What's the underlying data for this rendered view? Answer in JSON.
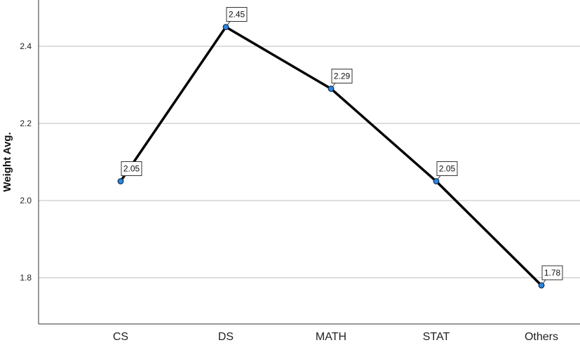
{
  "chart_data": {
    "type": "line",
    "title": "",
    "xlabel": "",
    "ylabel": "Weight Avg.",
    "categories": [
      "CS",
      "DS",
      "MATH",
      "STAT",
      "Others"
    ],
    "series": [
      {
        "values": [
          2.05,
          2.45,
          2.29,
          2.05,
          1.78
        ]
      }
    ],
    "data_labels": [
      "2.05",
      "2.45",
      "2.29",
      "2.05",
      "1.78"
    ],
    "y_ticks": [
      "1.8",
      "2.0",
      "2.2",
      "2.4"
    ],
    "ylim": [
      1.68,
      2.52
    ],
    "grid": true,
    "legend": "none",
    "line_color": "#000000",
    "marker_color": "#2e86de"
  }
}
